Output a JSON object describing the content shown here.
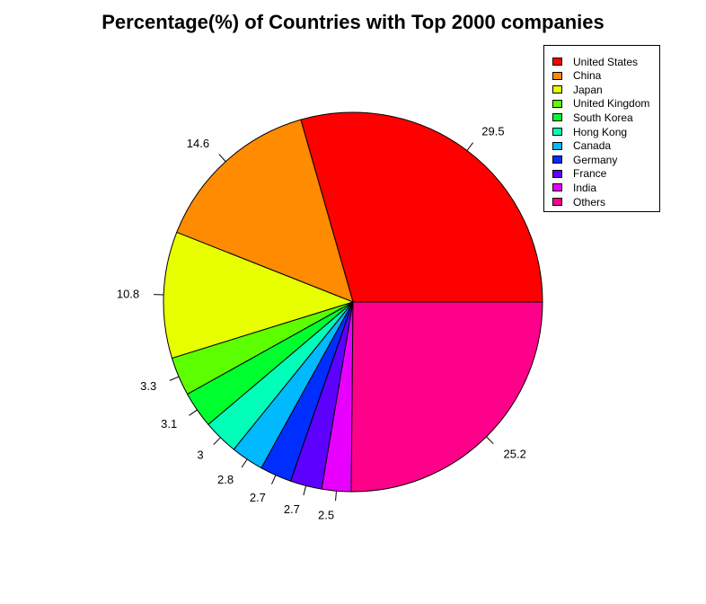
{
  "chart_data": {
    "type": "pie",
    "title": "Percentage(%) of Countries with Top 2000 companies",
    "categories": [
      "United States",
      "China",
      "Japan",
      "United Kingdom",
      "South Korea",
      "Hong Kong",
      "Canada",
      "Germany",
      "France",
      "India",
      "Others"
    ],
    "values": [
      29.5,
      14.6,
      10.8,
      3.3,
      3.1,
      3,
      2.8,
      2.7,
      2.7,
      2.5,
      25.2
    ],
    "data_labels": [
      "29.5",
      "14.6",
      "10.8",
      "3.3",
      "3.1",
      "3",
      "2.8",
      "2.7",
      "2.7",
      "2.5",
      "25.2"
    ],
    "colors": [
      "#FF0000",
      "#FF8B00",
      "#E8FF00",
      "#5DFF00",
      "#00FF2E",
      "#00FFB9",
      "#00B9FF",
      "#002EFF",
      "#5D00FF",
      "#E800FF",
      "#FF008B"
    ],
    "start_angle_deg": 0,
    "direction": "counterclockwise",
    "legend_position": "top-right"
  }
}
